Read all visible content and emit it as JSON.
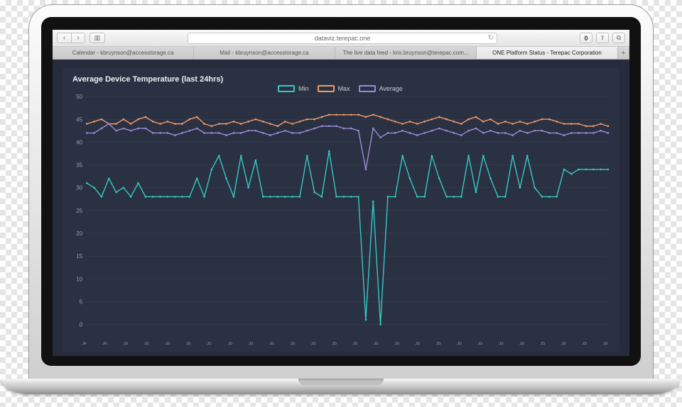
{
  "browser": {
    "url": "dataviz.terepac.one",
    "badge_count": "0",
    "tabs": [
      {
        "label": "Calendar - kbruynson@accesstorage.ca",
        "active": false
      },
      {
        "label": "Mail - kbruynson@accesstorage.ca",
        "active": false
      },
      {
        "label": "The live data feed - kris.bruynson@terepac.com...",
        "active": false
      },
      {
        "label": "ONE Platform Status - Terepac Corporation",
        "active": true
      }
    ]
  },
  "chart": {
    "title": "Average Device Temperature (last 24hrs)",
    "type": "line",
    "background_color": "#2a3142",
    "card_background": "#2a3142",
    "page_background": "#262c3b",
    "grid_color": "#3a4252",
    "text_color": "#cfd6df",
    "title_fontsize": 11,
    "label_fontsize": 8,
    "ylim": [
      0,
      50
    ],
    "ytick_step": 5,
    "x_labels": [
      "Sep 24",
      "Sep 25",
      "00:00",
      "01:00",
      "02:00",
      "03:00",
      "04:00",
      "05:00",
      "06:00",
      "07:00",
      "08:00",
      "09:00",
      "10:00",
      "11:00",
      "12:00",
      "13:00",
      "14:00",
      "15:00",
      "16:00",
      "17:00",
      "18:00",
      "19:00",
      "20:00",
      "21:00",
      "22:00",
      "23:00"
    ],
    "legend": [
      {
        "key": "min",
        "label": "Min",
        "color": "#35c9bf"
      },
      {
        "key": "max",
        "label": "Max",
        "color": "#f19a6a"
      },
      {
        "key": "avg",
        "label": "Average",
        "color": "#9b8bd9"
      }
    ],
    "line_width": 1.4,
    "marker_radius": 1.3,
    "series": {
      "min": [
        31,
        30,
        28,
        32,
        29,
        30,
        28,
        31,
        28,
        28,
        28,
        28,
        28,
        28,
        28,
        32,
        28,
        34,
        37,
        32,
        28,
        37,
        30,
        36,
        28,
        28,
        28,
        28,
        28,
        28,
        37,
        29,
        28,
        38,
        28,
        28,
        28,
        28,
        1,
        27,
        0,
        28,
        28,
        37,
        32,
        28,
        28,
        37,
        32,
        28,
        28,
        28,
        37,
        29,
        37,
        32,
        28,
        28,
        37,
        30,
        37,
        30,
        28,
        28,
        28,
        34,
        33,
        34,
        34,
        34,
        34,
        34
      ],
      "max": [
        44,
        44.5,
        45,
        44,
        44,
        45,
        44,
        45,
        45.5,
        44.5,
        44,
        44.5,
        44,
        44,
        45,
        45.5,
        44,
        43.5,
        44,
        44,
        44.5,
        44,
        44.5,
        45,
        44.5,
        44,
        43.5,
        44.5,
        44,
        44.5,
        45,
        45,
        45.5,
        46,
        46,
        46,
        46,
        46,
        45.5,
        46,
        45.5,
        45,
        44.5,
        44,
        44.5,
        44,
        44.5,
        45,
        45.5,
        45,
        44.5,
        44,
        45,
        45.5,
        44.5,
        45,
        44,
        44.5,
        44,
        44.5,
        44,
        44.5,
        45,
        45,
        44.5,
        44,
        44,
        44,
        43.5,
        43.5,
        44,
        43.5
      ],
      "avg": [
        42,
        42,
        43,
        44,
        42.5,
        43,
        42.5,
        43,
        43,
        42,
        42,
        42,
        41.5,
        42,
        42.5,
        43,
        42,
        42,
        42,
        41.5,
        42,
        42,
        42.5,
        42.5,
        42,
        41.5,
        42,
        42.5,
        42,
        42,
        42.5,
        43,
        43.5,
        43.5,
        43.5,
        43,
        43,
        42.5,
        34,
        43,
        41,
        42,
        42,
        42.5,
        42,
        41.5,
        42,
        42.5,
        43,
        42.5,
        42,
        41.5,
        42.5,
        43,
        42,
        42.5,
        42,
        42,
        41.5,
        42.5,
        42,
        42.5,
        42.5,
        42,
        42,
        41.5,
        42,
        42,
        42,
        42,
        42.5,
        42
      ]
    }
  }
}
